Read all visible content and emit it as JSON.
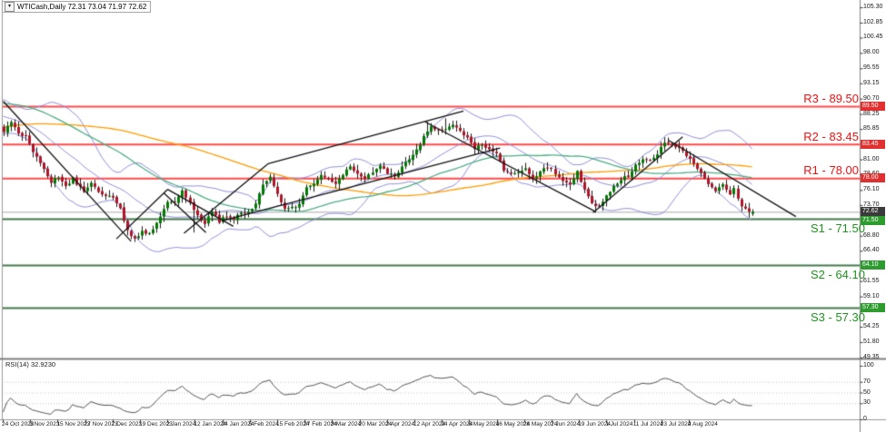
{
  "window": {
    "title": "WTICash,Daily 72.31 73.04 71.97 72.62",
    "symbol": "WTICash",
    "timeframe": "Daily"
  },
  "colors": {
    "background": "#ffffff",
    "up_candle": "#007a00",
    "down_candle": "#b01428",
    "wick": "#1c1c1c",
    "bollinger": "#9090dc",
    "ma_fast_green": "#4fae86",
    "ma_slow_orange": "#ff9d00",
    "resistance_line": "#ff4a4a",
    "support_line": "#44794a",
    "resistance_text": "#ee1313",
    "support_text": "#1e941e",
    "current_price_line": "#aaaaaa",
    "badge_resistance": "#e03030",
    "badge_support": "#2e9b2e",
    "badge_price": "#3a3a3a",
    "trendline": "#111111",
    "rsi_line": "#555555",
    "rsi_levels": "#c4c4c4",
    "axis_border": "#808080"
  },
  "chart_data": {
    "type": "candlestick",
    "title": "WTICash Daily with Bollinger Bands, MAs, support/resistance and RSI(14)",
    "last_ohlc": {
      "open": 72.31,
      "high": 73.04,
      "low": 71.97,
      "close": 72.62
    },
    "levels": {
      "resistance": [
        {
          "name": "R3",
          "price": 89.5,
          "label": "R3 - 89.50"
        },
        {
          "name": "R2",
          "price": 83.45,
          "label": "R2 - 83.45"
        },
        {
          "name": "R1",
          "price": 78.0,
          "label": "R1 - 78.00"
        }
      ],
      "support": [
        {
          "name": "S1",
          "price": 71.5,
          "label": "S1 - 71.50"
        },
        {
          "name": "S2",
          "price": 64.1,
          "label": "S2 - 64.10"
        },
        {
          "name": "S3",
          "price": 57.3,
          "label": "S3 - 57.30"
        }
      ],
      "current_price": 72.62
    },
    "y_axis": {
      "visible_ticks": [
        105.3,
        102.85,
        100.45,
        98.0,
        95.55,
        93.15,
        90.7,
        88.25,
        85.85,
        81.0,
        78.6,
        76.1,
        73.7,
        68.8,
        66.4,
        61.55,
        59.1,
        56.65,
        54.25,
        51.8,
        49.35
      ],
      "highlight_badges": [
        {
          "text": "89.50",
          "price": 89.5,
          "type": "resistance"
        },
        {
          "text": "83.45",
          "price": 83.45,
          "type": "resistance"
        },
        {
          "text": "78.00",
          "price": 78.0,
          "type": "resistance"
        },
        {
          "text": "72.62",
          "price": 72.62,
          "type": "price"
        },
        {
          "text": "71.50",
          "price": 71.5,
          "type": "support"
        },
        {
          "text": "64.10",
          "price": 64.1,
          "type": "support"
        },
        {
          "text": "57.30",
          "price": 57.3,
          "type": "support"
        }
      ]
    },
    "x_axis": {
      "date_labels": [
        "24 Oct 2023",
        "3 Nov 2023",
        "15 Nov 2023",
        "27 Nov 2023",
        "7 Dec 2023",
        "19 Dec 2023",
        "2 Jan 2024",
        "12 Jan 2024",
        "24 Jan 2024",
        "5 Feb 2024",
        "15 Feb 2024",
        "27 Feb 2024",
        "8 Mar 2024",
        "20 Mar 2024",
        "2 Apr 2024",
        "12 Apr 2024",
        "24 Apr 2024",
        "6 May 2024",
        "16 May 2024",
        "28 May 2024",
        "7 Jun 2024",
        "19 Jun 2024",
        "1 Jul 2024",
        "11 Jul 2024",
        "23 Jul 2024",
        "2 Aug 2024"
      ]
    },
    "price_path_anchors": [
      [
        0,
        85.6
      ],
      [
        2,
        87.2
      ],
      [
        4,
        85.2
      ],
      [
        6,
        84.6
      ],
      [
        8,
        82.2
      ],
      [
        10,
        80.6
      ],
      [
        13,
        77.4
      ],
      [
        15,
        78.3
      ],
      [
        17,
        76.7
      ],
      [
        19,
        77.9
      ],
      [
        22,
        75.7
      ],
      [
        24,
        77.3
      ],
      [
        27,
        75.4
      ],
      [
        30,
        74.9
      ],
      [
        32,
        73.0
      ],
      [
        34,
        69.6
      ],
      [
        36,
        68.3
      ],
      [
        38,
        69.4
      ],
      [
        40,
        69.0
      ],
      [
        43,
        71.8
      ],
      [
        45,
        74.3
      ],
      [
        47,
        73.9
      ],
      [
        49,
        75.9
      ],
      [
        51,
        74.0
      ],
      [
        53,
        72.1
      ],
      [
        55,
        70.6
      ],
      [
        57,
        72.7
      ],
      [
        59,
        71.1
      ],
      [
        61,
        72.0
      ],
      [
        63,
        71.4
      ],
      [
        65,
        72.6
      ],
      [
        67,
        72.4
      ],
      [
        69,
        74.0
      ],
      [
        71,
        76.8
      ],
      [
        73,
        78.1
      ],
      [
        75,
        75.7
      ],
      [
        77,
        72.9
      ],
      [
        79,
        73.2
      ],
      [
        81,
        73.9
      ],
      [
        83,
        76.3
      ],
      [
        85,
        76.9
      ],
      [
        87,
        78.6
      ],
      [
        89,
        77.7
      ],
      [
        91,
        76.9
      ],
      [
        93,
        78.5
      ],
      [
        95,
        79.8
      ],
      [
        97,
        78.7
      ],
      [
        99,
        78.1
      ],
      [
        101,
        79.0
      ],
      [
        103,
        80.1
      ],
      [
        105,
        78.8
      ],
      [
        107,
        78.3
      ],
      [
        109,
        79.7
      ],
      [
        111,
        81.2
      ],
      [
        113,
        82.4
      ],
      [
        115,
        84.7
      ],
      [
        117,
        86.2
      ],
      [
        119,
        85.5
      ],
      [
        121,
        85.9
      ],
      [
        123,
        86.4
      ],
      [
        125,
        85.4
      ],
      [
        127,
        84.3
      ],
      [
        129,
        82.8
      ],
      [
        131,
        83.4
      ],
      [
        133,
        82.7
      ],
      [
        135,
        81.9
      ],
      [
        137,
        79.3
      ],
      [
        139,
        78.5
      ],
      [
        141,
        79.0
      ],
      [
        143,
        79.4
      ],
      [
        145,
        78.1
      ],
      [
        147,
        78.9
      ],
      [
        149,
        79.9
      ],
      [
        151,
        78.6
      ],
      [
        153,
        77.7
      ],
      [
        155,
        76.9
      ],
      [
        157,
        78.9
      ],
      [
        159,
        76.2
      ],
      [
        161,
        73.8
      ],
      [
        163,
        73.4
      ],
      [
        165,
        75.2
      ],
      [
        167,
        76.5
      ],
      [
        169,
        77.8
      ],
      [
        171,
        78.4
      ],
      [
        173,
        80.0
      ],
      [
        175,
        81.2
      ],
      [
        177,
        80.9
      ],
      [
        179,
        81.9
      ],
      [
        181,
        83.9
      ],
      [
        183,
        83.3
      ],
      [
        185,
        82.8
      ],
      [
        187,
        81.6
      ],
      [
        189,
        80.3
      ],
      [
        191,
        78.6
      ],
      [
        193,
        77.2
      ],
      [
        195,
        76.0
      ],
      [
        197,
        76.8
      ],
      [
        199,
        75.2
      ],
      [
        200,
        76.3
      ],
      [
        201,
        74.8
      ],
      [
        202,
        73.4
      ],
      [
        203,
        73.0
      ],
      [
        204,
        72.8
      ],
      [
        205,
        72.62
      ]
    ],
    "pre_window_trend_for_indicators": [
      [
        -100,
        77.5
      ],
      [
        -70,
        82.5
      ],
      [
        -45,
        90.0
      ],
      [
        -30,
        93.3
      ],
      [
        -20,
        90.3
      ],
      [
        -10,
        88.0
      ],
      [
        -1,
        86.0
      ]
    ],
    "extreme_pins": [
      {
        "day": 36,
        "low": 67.8
      },
      {
        "day": 52,
        "low": 69.3
      },
      {
        "day": 116,
        "high": 87.0
      },
      {
        "day": 121,
        "high": 87.55
      },
      {
        "day": 162,
        "low": 72.48
      },
      {
        "day": 181,
        "high": 84.52
      },
      {
        "day": 204,
        "low": 71.68
      },
      {
        "day": 205,
        "open": 72.31,
        "high": 73.04,
        "low": 71.97,
        "close": 72.62
      }
    ],
    "trendlines": [
      [
        0,
        90.3,
        35,
        67.9
      ],
      [
        31,
        68.3,
        45,
        76.2
      ],
      [
        45,
        76.2,
        63,
        70.3
      ],
      [
        44,
        75.6,
        55.5,
        69.3
      ],
      [
        49.5,
        69.2,
        72.5,
        80.3
      ],
      [
        72.5,
        80.3,
        126,
        88.7
      ],
      [
        60,
        71.2,
        136,
        82.8
      ],
      [
        115.5,
        87.0,
        162,
        72.7
      ],
      [
        161.5,
        72.5,
        186,
        84.6
      ],
      [
        182,
        84.1,
        217,
        71.85
      ]
    ],
    "overlays": {
      "bollinger": {
        "period": 20,
        "deviation": 2
      },
      "ma_green_period": 50,
      "ma_orange_period": 100
    },
    "rsi": {
      "label": "RSI(14)",
      "value_label": "32.9230",
      "period": 14,
      "dotted_levels": [
        70,
        50,
        30
      ],
      "axis_labels": [
        100,
        70,
        50,
        30,
        0
      ]
    }
  }
}
